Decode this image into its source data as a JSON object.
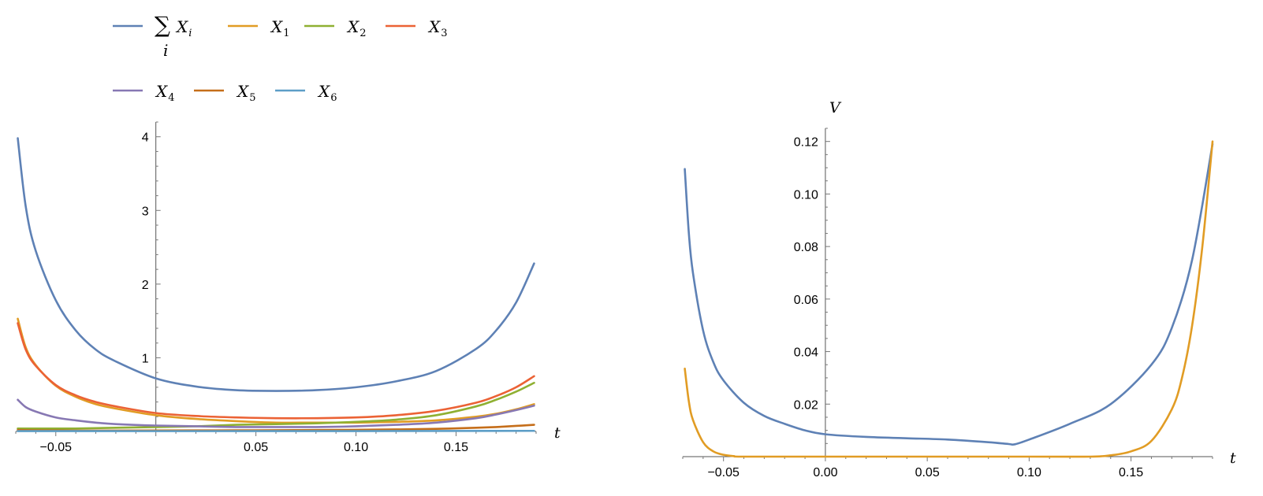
{
  "chart_data": [
    {
      "type": "line",
      "title": "",
      "xlabel": "t",
      "ylabel": "",
      "xlim": [
        -0.07,
        0.19
      ],
      "ylim": [
        0,
        4.2
      ],
      "x_ticks": [
        -0.05,
        0.05,
        0.1,
        0.15
      ],
      "x_tick_labels": [
        "-0.05",
        "0.05",
        "0.10",
        "0.15"
      ],
      "y_ticks": [
        1,
        2,
        3,
        4
      ],
      "y_tick_labels": [
        "1",
        "2",
        "3",
        "4"
      ],
      "grid": false,
      "legend": {
        "placement": "top",
        "entries": [
          {
            "main": "∑ X",
            "sub": "i",
            "under": "i",
            "color": "#5e81b5"
          },
          {
            "main": "X",
            "sub": "1",
            "color": "#e19c24"
          },
          {
            "main": "X",
            "sub": "2",
            "color": "#8fb032"
          },
          {
            "main": "X",
            "sub": "3",
            "color": "#eb6235"
          },
          {
            "main": "X",
            "sub": "4",
            "color": "#8778b3"
          },
          {
            "main": "X",
            "sub": "5",
            "color": "#c56e1a"
          },
          {
            "main": "X",
            "sub": "6",
            "color": "#5d9ec7"
          }
        ]
      },
      "series": [
        {
          "name": "∑i Xi",
          "color": "#5e81b5",
          "x": [
            -0.069,
            -0.065,
            -0.06,
            -0.05,
            -0.04,
            -0.03,
            -0.02,
            0.0,
            0.02,
            0.04,
            0.06,
            0.08,
            0.1,
            0.12,
            0.14,
            0.16,
            0.17,
            0.18,
            0.189
          ],
          "y": [
            3.98,
            3.05,
            2.45,
            1.78,
            1.37,
            1.11,
            0.95,
            0.72,
            0.61,
            0.56,
            0.55,
            0.56,
            0.6,
            0.68,
            0.82,
            1.12,
            1.37,
            1.75,
            2.28
          ]
        },
        {
          "name": "X1",
          "color": "#e19c24",
          "x": [
            -0.069,
            -0.065,
            -0.06,
            -0.05,
            -0.04,
            -0.03,
            -0.02,
            0.0,
            0.02,
            0.04,
            0.06,
            0.08,
            0.1,
            0.12,
            0.14,
            0.16,
            0.17,
            0.18,
            0.189
          ],
          "y": [
            1.53,
            1.14,
            0.9,
            0.62,
            0.47,
            0.37,
            0.31,
            0.22,
            0.17,
            0.14,
            0.12,
            0.12,
            0.12,
            0.13,
            0.15,
            0.2,
            0.24,
            0.3,
            0.37
          ]
        },
        {
          "name": "X2",
          "color": "#8fb032",
          "x": [
            -0.069,
            -0.06,
            -0.04,
            -0.02,
            0.0,
            0.02,
            0.04,
            0.06,
            0.08,
            0.1,
            0.12,
            0.14,
            0.16,
            0.17,
            0.18,
            0.189
          ],
          "y": [
            0.04,
            0.04,
            0.04,
            0.05,
            0.06,
            0.07,
            0.09,
            0.1,
            0.11,
            0.13,
            0.16,
            0.22,
            0.34,
            0.43,
            0.54,
            0.66
          ]
        },
        {
          "name": "X3",
          "color": "#eb6235",
          "x": [
            -0.069,
            -0.065,
            -0.06,
            -0.05,
            -0.04,
            -0.03,
            -0.02,
            0.0,
            0.02,
            0.04,
            0.06,
            0.08,
            0.1,
            0.12,
            0.14,
            0.16,
            0.17,
            0.18,
            0.189
          ],
          "y": [
            1.47,
            1.11,
            0.89,
            0.63,
            0.49,
            0.4,
            0.34,
            0.25,
            0.21,
            0.19,
            0.18,
            0.18,
            0.19,
            0.22,
            0.28,
            0.39,
            0.48,
            0.6,
            0.75
          ]
        },
        {
          "name": "X4",
          "color": "#8778b3",
          "x": [
            -0.069,
            -0.065,
            -0.06,
            -0.05,
            -0.04,
            -0.03,
            -0.02,
            0.0,
            0.02,
            0.04,
            0.06,
            0.08,
            0.1,
            0.12,
            0.14,
            0.16,
            0.17,
            0.18,
            0.189
          ],
          "y": [
            0.43,
            0.33,
            0.27,
            0.19,
            0.15,
            0.12,
            0.1,
            0.08,
            0.07,
            0.06,
            0.06,
            0.06,
            0.07,
            0.09,
            0.12,
            0.18,
            0.23,
            0.29,
            0.35
          ]
        },
        {
          "name": "X5",
          "color": "#c56e1a",
          "x": [
            -0.069,
            -0.06,
            -0.04,
            -0.02,
            0.0,
            0.02,
            0.04,
            0.06,
            0.08,
            0.1,
            0.12,
            0.14,
            0.16,
            0.17,
            0.18,
            0.189
          ],
          "y": [
            0.02,
            0.015,
            0.012,
            0.012,
            0.013,
            0.014,
            0.015,
            0.017,
            0.019,
            0.022,
            0.027,
            0.035,
            0.05,
            0.06,
            0.075,
            0.09
          ]
        },
        {
          "name": "X6",
          "color": "#5d9ec7",
          "x": [
            -0.069,
            0.0,
            0.1,
            0.189
          ],
          "y": [
            0.005,
            0.004,
            0.005,
            0.008
          ]
        }
      ]
    },
    {
      "type": "line",
      "title": "",
      "xlabel": "t",
      "ylabel": "V",
      "xlim": [
        -0.07,
        0.19
      ],
      "ylim": [
        0,
        0.125
      ],
      "x_ticks": [
        -0.05,
        0.0,
        0.05,
        0.1,
        0.15
      ],
      "x_tick_labels": [
        "-0.05",
        "0.00",
        "0.05",
        "0.10",
        "0.15"
      ],
      "y_ticks": [
        0.02,
        0.04,
        0.06,
        0.08,
        0.1,
        0.12
      ],
      "y_tick_labels": [
        "0.02",
        "0.04",
        "0.06",
        "0.08",
        "0.10",
        "0.12"
      ],
      "grid": false,
      "series": [
        {
          "color": "#5e81b5",
          "x": [
            -0.069,
            -0.067,
            -0.065,
            -0.06,
            -0.055,
            -0.05,
            -0.04,
            -0.03,
            -0.02,
            -0.01,
            0.0,
            0.02,
            0.04,
            0.06,
            0.08,
            0.09,
            0.093,
            0.1,
            0.12,
            0.14,
            0.16,
            0.17,
            0.18,
            0.19
          ],
          "y": [
            0.1095,
            0.085,
            0.07,
            0.048,
            0.036,
            0.029,
            0.0205,
            0.0155,
            0.0125,
            0.01,
            0.0085,
            0.0075,
            0.007,
            0.0065,
            0.0055,
            0.0048,
            0.0047,
            0.0065,
            0.0125,
            0.02,
            0.035,
            0.049,
            0.075,
            0.119
          ]
        },
        {
          "color": "#e19c24",
          "x": [
            -0.069,
            -0.067,
            -0.065,
            -0.06,
            -0.055,
            -0.05,
            -0.045,
            -0.04,
            0.0,
            0.1,
            0.13,
            0.14,
            0.15,
            0.16,
            0.17,
            0.175,
            0.18,
            0.185,
            0.19
          ],
          "y": [
            0.0335,
            0.021,
            0.014,
            0.0055,
            0.002,
            0.0007,
            0.0002,
            0.0,
            0.0,
            0.0,
            0.0,
            0.0005,
            0.002,
            0.006,
            0.018,
            0.03,
            0.05,
            0.08,
            0.12
          ]
        }
      ]
    }
  ]
}
